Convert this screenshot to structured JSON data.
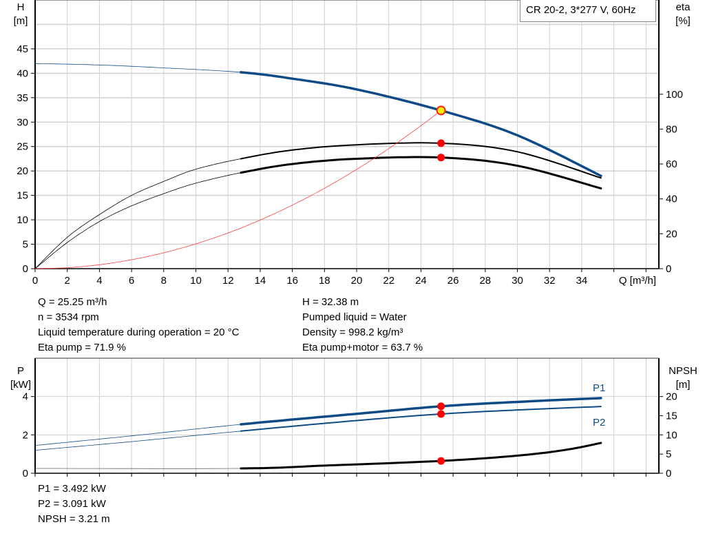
{
  "legend": "CR 20-2, 3*277 V, 60Hz",
  "colors": {
    "head": "#0d4a86",
    "eta": "#000000",
    "system": "#ff4040",
    "duty_point": "#ff0000",
    "power": "#0d4a86",
    "npsh": "#000000",
    "grid": "#d0d0d0"
  },
  "info_top_left": [
    "Q = 25.25 m³/h",
    "n = 3534 rpm",
    "Liquid temperature during operation = 20 °C",
    "Eta pump = 71.9 %"
  ],
  "info_top_right": [
    "H = 32.38 m",
    "Pumped liquid = Water",
    "Density = 998.2 kg/m³",
    "Eta pump+motor = 63.7 %"
  ],
  "info_bottom": [
    "P1 = 3.492 kW",
    "P2 = 3.091 kW",
    "NPSH = 3.21 m"
  ],
  "chart_data": [
    {
      "type": "line",
      "ylabel": "H\n[m]",
      "ylabel_lines": [
        "H",
        "[m]"
      ],
      "y2label_lines": [
        "eta",
        "[%]"
      ],
      "xlabel": "Q [m³/h]",
      "xlim": [
        0,
        38.8
      ],
      "ylim": [
        0,
        55
      ],
      "y2lim": [
        0,
        154
      ],
      "grid": true,
      "legend": "top-right",
      "xticks": [
        0,
        2,
        4,
        6,
        8,
        10,
        12,
        14,
        16,
        18,
        20,
        22,
        24,
        26,
        28,
        30,
        32,
        34
      ],
      "yticks": [
        0,
        5,
        10,
        15,
        20,
        25,
        30,
        35,
        40,
        45
      ],
      "y2ticks": [
        0,
        20,
        40,
        60,
        80,
        100
      ],
      "series": [
        {
          "key": "head",
          "axis": "y",
          "thin_until": 12.8,
          "x": [
            0,
            4,
            8,
            12.8,
            16,
            20,
            25.25,
            30,
            35.2
          ],
          "y": [
            42,
            41.7,
            41.1,
            40.2,
            38.9,
            36.7,
            32.38,
            27.3,
            19
          ]
        },
        {
          "key": "eta_pump",
          "axis": "y2",
          "thin_until": 12.8,
          "x": [
            0,
            2,
            4,
            6,
            8,
            10,
            12.8,
            16,
            20,
            25.25,
            30,
            35.2
          ],
          "y": [
            0,
            18,
            31,
            42,
            50,
            57,
            63,
            68,
            71,
            71.9,
            67,
            52
          ]
        },
        {
          "key": "eta_total",
          "axis": "y2",
          "thin_until": 12.8,
          "x": [
            0,
            2,
            4,
            6,
            8,
            10,
            12.8,
            16,
            20,
            25.25,
            30,
            35.2
          ],
          "y": [
            0,
            15,
            27,
            36,
            43,
            49,
            55,
            60,
            63,
            63.7,
            59,
            46
          ]
        },
        {
          "key": "system",
          "axis": "y",
          "x": [
            0,
            2,
            4,
            6,
            8,
            10,
            12,
            14,
            16,
            18,
            20,
            22,
            24,
            25.25
          ],
          "y": [
            0,
            0.2,
            0.81,
            1.83,
            3.25,
            5.08,
            7.31,
            9.95,
            13,
            16.46,
            20.31,
            24.58,
            29.26,
            32.38
          ]
        }
      ],
      "duty_points": [
        {
          "series": "head",
          "x": 25.25,
          "y": 32.38
        },
        {
          "series": "eta_pump",
          "x": 25.25,
          "y": 71.9
        },
        {
          "series": "eta_total",
          "x": 25.25,
          "y": 63.7
        }
      ]
    },
    {
      "type": "line",
      "ylabel_lines": [
        "P",
        "[kW]"
      ],
      "y2label_lines": [
        "NPSH",
        "[m]"
      ],
      "xlim": [
        0,
        38.8
      ],
      "ylim": [
        0,
        6
      ],
      "y2lim": [
        0,
        30
      ],
      "grid": true,
      "yticks": [
        0,
        2,
        4
      ],
      "y2ticks": [
        0,
        5,
        10,
        15,
        20
      ],
      "series": [
        {
          "key": "P1",
          "name": "P1",
          "axis": "y",
          "thin_until": 12.8,
          "x": [
            0,
            6,
            12.8,
            20,
            25.25,
            30,
            35.2
          ],
          "y": [
            1.45,
            1.95,
            2.55,
            3.1,
            3.492,
            3.72,
            3.92
          ]
        },
        {
          "key": "P2",
          "name": "P2",
          "axis": "y",
          "thin_until": 12.8,
          "x": [
            0,
            6,
            12.8,
            20,
            25.25,
            30,
            35.2
          ],
          "y": [
            1.2,
            1.65,
            2.2,
            2.75,
            3.091,
            3.3,
            3.48
          ]
        },
        {
          "key": "NPSH",
          "axis": "y2",
          "thin_until": 12.8,
          "x": [
            0,
            12.8,
            18,
            25.25,
            30,
            33,
            35.2
          ],
          "y": [
            1.26,
            1.26,
            2.0,
            3.21,
            4.6,
            6.1,
            7.9
          ]
        }
      ],
      "duty_points": [
        {
          "series": "P1",
          "x": 25.25,
          "y": 3.492
        },
        {
          "series": "P2",
          "x": 25.25,
          "y": 3.091
        },
        {
          "series": "NPSH",
          "x": 25.25,
          "y": 3.21
        }
      ]
    }
  ]
}
